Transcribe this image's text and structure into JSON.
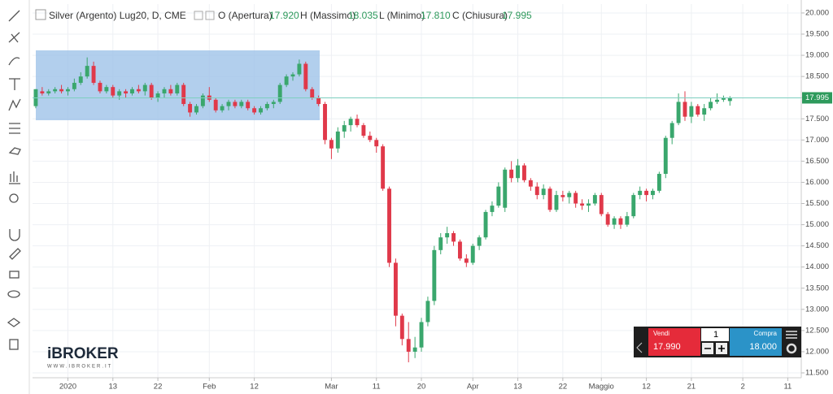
{
  "chart_data": {
    "type": "candlestick",
    "title": "Silver (Argento) Lug20, D, CME",
    "ohlc": [
      {
        "label": "O (Apertura)",
        "value": "17.920"
      },
      {
        "label": "H (Massimo)",
        "value": "18.035"
      },
      {
        "label": "L (Minimo)",
        "value": "17.810"
      },
      {
        "label": "C (Chiusura)",
        "value": "17.995"
      }
    ],
    "up_color": "#3aa76d",
    "down_color": "#e0394a",
    "grid": true,
    "xlim": [
      -0.5,
      119.1
    ],
    "ylim": [
      11.385,
      20.21
    ],
    "xticks": [
      {
        "value": 5,
        "label": "2020"
      },
      {
        "value": 12,
        "label": "13"
      },
      {
        "value": 19,
        "label": "22"
      },
      {
        "value": 27,
        "label": "Feb"
      },
      {
        "value": 34,
        "label": "12"
      },
      {
        "value": 46,
        "label": "Mar"
      },
      {
        "value": 53,
        "label": "11"
      },
      {
        "value": 60,
        "label": "20"
      },
      {
        "value": 68,
        "label": "Apr"
      },
      {
        "value": 75,
        "label": "13"
      },
      {
        "value": 82,
        "label": "22"
      },
      {
        "value": 88,
        "label": "Maggio"
      },
      {
        "value": 95,
        "label": "12"
      },
      {
        "value": 102,
        "label": "21"
      },
      {
        "value": 110,
        "label": "2"
      },
      {
        "value": 117,
        "label": "11"
      }
    ],
    "yticks": [
      {
        "value": 11.5,
        "label": "11.500"
      },
      {
        "value": 12,
        "label": "12.000"
      },
      {
        "value": 12.5,
        "label": "12.500"
      },
      {
        "value": 13,
        "label": "13.000"
      },
      {
        "value": 13.5,
        "label": "13.500"
      },
      {
        "value": 14,
        "label": "14.000"
      },
      {
        "value": 14.5,
        "label": "14.500"
      },
      {
        "value": 15,
        "label": "15.000"
      },
      {
        "value": 15.5,
        "label": "15.500"
      },
      {
        "value": 16,
        "label": "16.000"
      },
      {
        "value": 16.5,
        "label": "16.500"
      },
      {
        "value": 17,
        "label": "17.000"
      },
      {
        "value": 17.5,
        "label": "17.500"
      },
      {
        "value": 18,
        "label": "18.000"
      },
      {
        "value": 18.5,
        "label": "18.500"
      },
      {
        "value": 19,
        "label": "19.000"
      },
      {
        "value": 19.5,
        "label": "19.500"
      },
      {
        "value": 20,
        "label": "20.000"
      }
    ],
    "price_line": {
      "value": 17.995,
      "label": "17.995",
      "color": "#2e9a5c"
    },
    "candles": [
      [
        17.8,
        18.2,
        17.75,
        18.2
      ],
      [
        18.15,
        18.25,
        18.05,
        18.1
      ],
      [
        18.1,
        18.2,
        18.05,
        18.15
      ],
      [
        18.15,
        18.25,
        18.1,
        18.2
      ],
      [
        18.2,
        18.3,
        18.1,
        18.15
      ],
      [
        18.15,
        18.25,
        18.05,
        18.2
      ],
      [
        18.2,
        18.45,
        18.15,
        18.35
      ],
      [
        18.35,
        18.6,
        18.3,
        18.5
      ],
      [
        18.5,
        18.95,
        18.45,
        18.75
      ],
      [
        18.75,
        18.85,
        18.3,
        18.35
      ],
      [
        18.35,
        18.4,
        18.1,
        18.15
      ],
      [
        18.15,
        18.3,
        18.1,
        18.25
      ],
      [
        18.25,
        18.3,
        18.0,
        18.05
      ],
      [
        18.05,
        18.2,
        17.95,
        18.15
      ],
      [
        18.15,
        18.2,
        18.0,
        18.1
      ],
      [
        18.1,
        18.25,
        18.05,
        18.2
      ],
      [
        18.2,
        18.3,
        18.1,
        18.15
      ],
      [
        18.15,
        18.35,
        18.05,
        18.3
      ],
      [
        18.3,
        18.35,
        17.95,
        18.0
      ],
      [
        18.0,
        18.15,
        17.9,
        18.1
      ],
      [
        18.1,
        18.25,
        18.0,
        18.2
      ],
      [
        18.2,
        18.3,
        18.05,
        18.1
      ],
      [
        18.1,
        18.35,
        18.05,
        18.3
      ],
      [
        18.3,
        18.35,
        17.8,
        17.85
      ],
      [
        17.85,
        17.9,
        17.55,
        17.65
      ],
      [
        17.65,
        17.85,
        17.6,
        17.8
      ],
      [
        17.8,
        18.1,
        17.75,
        18.05
      ],
      [
        18.05,
        18.25,
        17.9,
        17.95
      ],
      [
        17.95,
        18.0,
        17.65,
        17.7
      ],
      [
        17.7,
        17.85,
        17.65,
        17.8
      ],
      [
        17.8,
        17.95,
        17.7,
        17.9
      ],
      [
        17.9,
        17.95,
        17.75,
        17.8
      ],
      [
        17.8,
        17.95,
        17.75,
        17.9
      ],
      [
        17.9,
        17.95,
        17.7,
        17.75
      ],
      [
        17.75,
        17.8,
        17.6,
        17.65
      ],
      [
        17.65,
        17.8,
        17.6,
        17.75
      ],
      [
        17.75,
        17.9,
        17.7,
        17.85
      ],
      [
        17.85,
        17.95,
        17.75,
        17.9
      ],
      [
        17.9,
        18.35,
        17.85,
        18.3
      ],
      [
        18.3,
        18.55,
        18.25,
        18.5
      ],
      [
        18.5,
        18.6,
        18.4,
        18.55
      ],
      [
        18.55,
        18.9,
        18.5,
        18.8
      ],
      [
        18.8,
        18.85,
        18.15,
        18.2
      ],
      [
        18.2,
        18.25,
        17.95,
        18.0
      ],
      [
        18.0,
        18.05,
        17.8,
        17.85
      ],
      [
        17.85,
        17.9,
        16.9,
        17.0
      ],
      [
        17.0,
        17.05,
        16.55,
        16.8
      ],
      [
        16.8,
        17.3,
        16.7,
        17.2
      ],
      [
        17.2,
        17.45,
        17.05,
        17.35
      ],
      [
        17.35,
        17.55,
        17.2,
        17.5
      ],
      [
        17.5,
        17.6,
        17.3,
        17.35
      ],
      [
        17.35,
        17.4,
        17.05,
        17.1
      ],
      [
        17.1,
        17.2,
        16.95,
        17.0
      ],
      [
        17.0,
        17.05,
        16.7,
        16.85
      ],
      [
        16.85,
        16.9,
        15.8,
        15.85
      ],
      [
        15.85,
        15.9,
        14.0,
        14.1
      ],
      [
        14.1,
        14.2,
        12.6,
        12.85
      ],
      [
        12.85,
        12.9,
        12.15,
        12.3
      ],
      [
        12.3,
        12.7,
        11.75,
        12.0
      ],
      [
        12.0,
        12.35,
        11.85,
        12.1
      ],
      [
        12.1,
        12.8,
        12.0,
        12.7
      ],
      [
        12.7,
        13.3,
        12.6,
        13.2
      ],
      [
        13.2,
        14.5,
        13.1,
        14.4
      ],
      [
        14.4,
        14.8,
        14.3,
        14.7
      ],
      [
        14.7,
        14.95,
        14.55,
        14.8
      ],
      [
        14.8,
        14.85,
        14.5,
        14.6
      ],
      [
        14.6,
        14.65,
        14.15,
        14.2
      ],
      [
        14.2,
        14.3,
        14.0,
        14.1
      ],
      [
        14.1,
        14.55,
        14.05,
        14.5
      ],
      [
        14.5,
        14.75,
        14.4,
        14.7
      ],
      [
        14.7,
        15.35,
        14.65,
        15.3
      ],
      [
        15.3,
        15.55,
        15.2,
        15.45
      ],
      [
        15.45,
        16.0,
        15.4,
        15.9
      ],
      [
        15.4,
        16.35,
        15.3,
        16.3
      ],
      [
        16.3,
        16.5,
        16.0,
        16.1
      ],
      [
        16.1,
        16.55,
        16.0,
        16.4
      ],
      [
        16.4,
        16.45,
        16.0,
        16.05
      ],
      [
        16.05,
        16.1,
        15.8,
        15.9
      ],
      [
        15.9,
        16.0,
        15.6,
        15.7
      ],
      [
        15.7,
        15.95,
        15.6,
        15.85
      ],
      [
        15.85,
        15.9,
        15.3,
        15.35
      ],
      [
        15.35,
        15.8,
        15.3,
        15.7
      ],
      [
        15.7,
        15.8,
        15.55,
        15.65
      ],
      [
        15.65,
        15.8,
        15.5,
        15.75
      ],
      [
        15.75,
        15.8,
        15.4,
        15.5
      ],
      [
        15.5,
        15.6,
        15.35,
        15.45
      ],
      [
        15.45,
        15.6,
        15.3,
        15.5
      ],
      [
        15.5,
        15.75,
        15.45,
        15.7
      ],
      [
        15.7,
        15.75,
        15.2,
        15.25
      ],
      [
        15.25,
        15.3,
        14.95,
        15.0
      ],
      [
        15.0,
        15.2,
        14.9,
        15.15
      ],
      [
        15.15,
        15.2,
        14.9,
        15.0
      ],
      [
        15.0,
        15.3,
        14.95,
        15.2
      ],
      [
        15.2,
        15.75,
        15.15,
        15.7
      ],
      [
        15.7,
        15.9,
        15.6,
        15.8
      ],
      [
        15.8,
        15.85,
        15.55,
        15.7
      ],
      [
        15.7,
        15.85,
        15.6,
        15.8
      ],
      [
        15.8,
        16.25,
        15.75,
        16.2
      ],
      [
        16.2,
        17.1,
        16.1,
        17.05
      ],
      [
        17.05,
        17.45,
        16.9,
        17.4
      ],
      [
        17.4,
        18.1,
        17.35,
        17.9
      ],
      [
        17.9,
        18.15,
        17.45,
        17.55
      ],
      [
        17.55,
        17.9,
        17.4,
        17.8
      ],
      [
        17.8,
        17.85,
        17.55,
        17.6
      ],
      [
        17.6,
        17.85,
        17.45,
        17.75
      ],
      [
        17.75,
        18.0,
        17.7,
        17.9
      ],
      [
        17.9,
        18.1,
        17.85,
        17.95
      ],
      [
        17.95,
        18.05,
        17.9,
        18.0
      ],
      [
        17.92,
        18.035,
        17.81,
        17.995
      ]
    ]
  },
  "widget": {
    "sell_label": "Vendi",
    "sell_price": "17.990",
    "quantity": "1",
    "buy_label": "Compra",
    "buy_price": "18.000"
  },
  "logo": {
    "name": "iBROKER",
    "url": "WWW.IBROKER.IT"
  }
}
